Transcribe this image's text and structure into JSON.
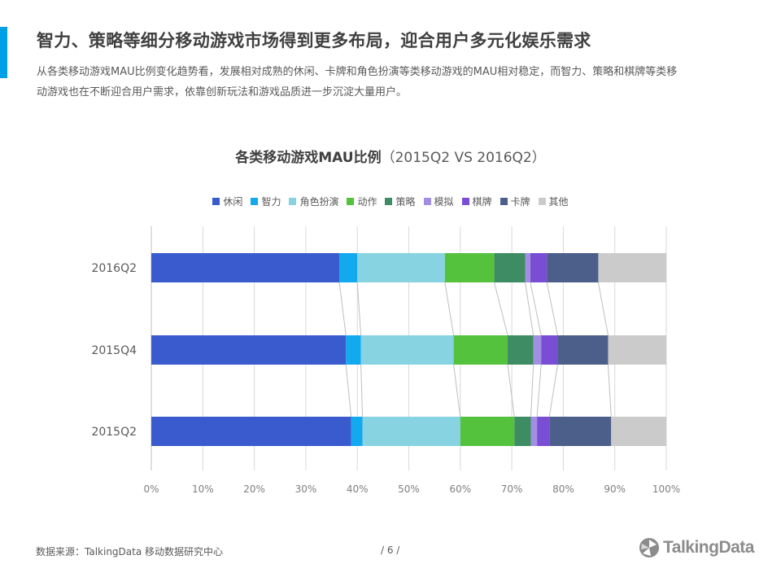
{
  "page": {
    "title": "智力、策略等细分移动游戏市场得到更多布局，迎合用户多元化娱乐需求",
    "subtitle": "从各类移动游戏MAU比例变化趋势看，发展相对成熟的休闲、卡牌和角色扮演等类移动游戏的MAU相对稳定，而智力、策略和棋牌等类移动游戏也在不断迎合用户需求，依靠创新玩法和游戏品质进一步沉淀大量用户。",
    "accent_color": "#00a0e9",
    "source": "数据来源：TalkingData  移动数据研究中心",
    "page_number": "/   6   /",
    "logo_text": "TalkingData"
  },
  "chart_data": {
    "type": "bar",
    "orientation": "horizontal",
    "stacked": "percent",
    "title": "各类移动游戏MAU比例",
    "subtitle": "（2015Q2 VS 2016Q2）",
    "categories": [
      "2016Q2",
      "2015Q4",
      "2015Q2"
    ],
    "xlim": [
      0,
      100
    ],
    "x_ticks": [
      "0%",
      "10%",
      "20%",
      "30%",
      "40%",
      "50%",
      "60%",
      "70%",
      "80%",
      "90%",
      "100%"
    ],
    "grid": "vertical",
    "legend_position": "top",
    "series": [
      {
        "name": "休闲",
        "color": "#3a5bcd",
        "values": [
          36.5,
          37.8,
          38.8
        ]
      },
      {
        "name": "智力",
        "color": "#12a9ef",
        "values": [
          3.5,
          2.9,
          2.2
        ]
      },
      {
        "name": "角色扮演",
        "color": "#88d3e2",
        "values": [
          17.0,
          18.0,
          19.0
        ]
      },
      {
        "name": "动作",
        "color": "#55c23d",
        "values": [
          9.6,
          10.5,
          10.5
        ]
      },
      {
        "name": "策略",
        "color": "#3d8c63",
        "values": [
          6.0,
          5.0,
          3.2
        ]
      },
      {
        "name": "模拟",
        "color": "#a28fe3",
        "values": [
          1.0,
          1.5,
          1.2
        ]
      },
      {
        "name": "棋牌",
        "color": "#7a4ed4",
        "values": [
          3.2,
          3.2,
          2.4
        ]
      },
      {
        "name": "卡牌",
        "color": "#4c5f8b",
        "values": [
          10.0,
          9.8,
          12.0
        ]
      },
      {
        "name": "其他",
        "color": "#cbcbcb",
        "values": [
          13.2,
          11.3,
          10.7
        ]
      }
    ]
  }
}
